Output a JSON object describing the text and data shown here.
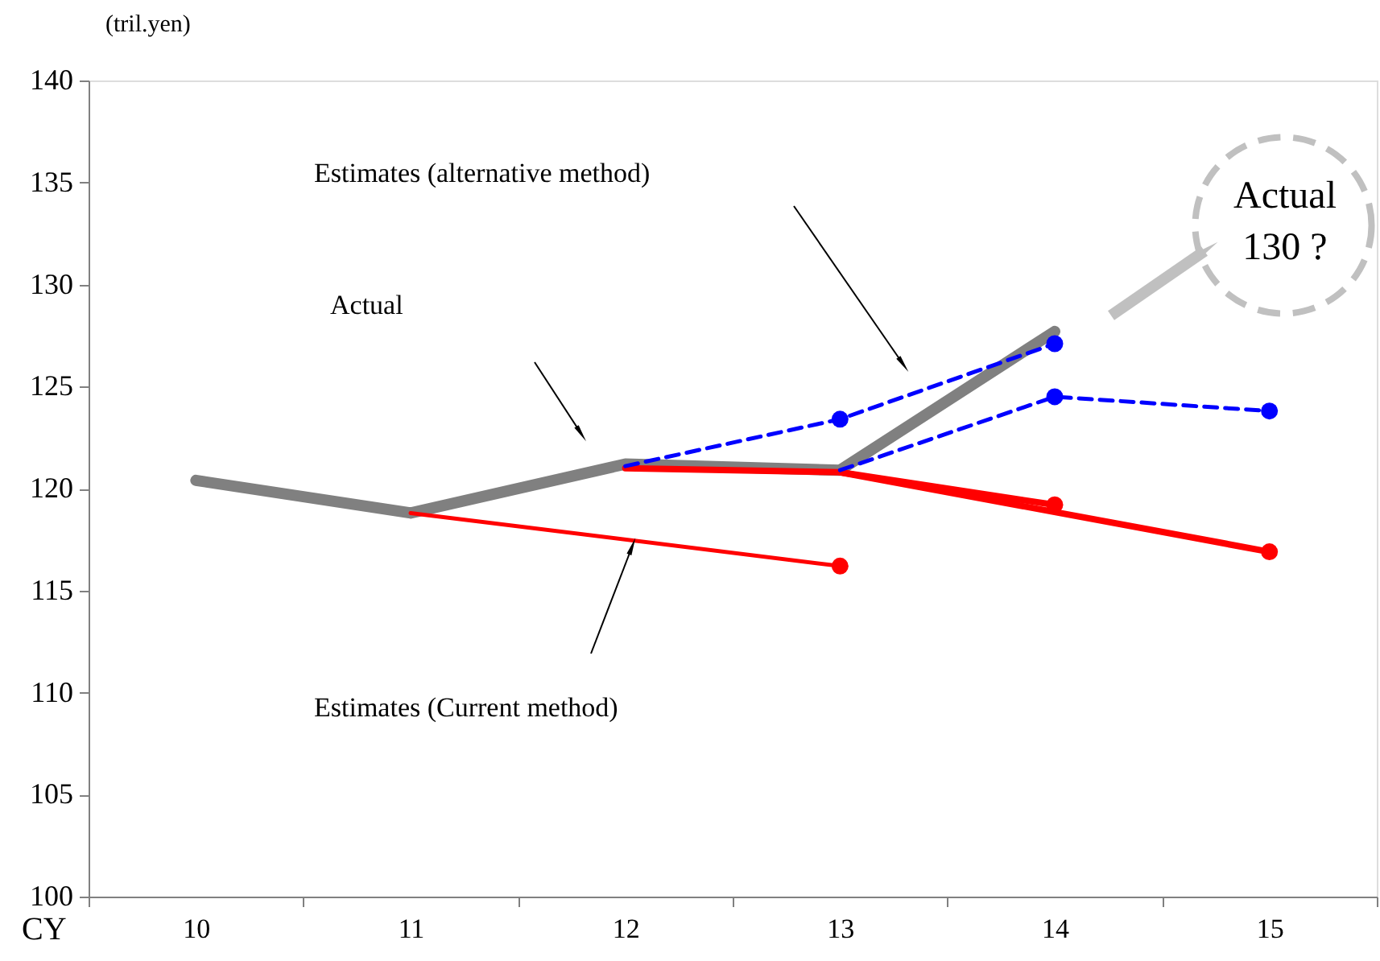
{
  "chart_data": {
    "type": "line",
    "ylabel": "(tril.yen)",
    "xlabel": "CY",
    "categories": [
      "10",
      "11",
      "12",
      "13",
      "14",
      "15"
    ],
    "ylim": [
      100,
      140
    ],
    "yticks": [
      100,
      105,
      110,
      115,
      120,
      125,
      130,
      135,
      140
    ],
    "grid": false,
    "marker": "none",
    "series": [
      {
        "color": "#808080",
        "line_style": "solid",
        "x": [
          "10",
          "11",
          "12",
          "13",
          "14"
        ],
        "values": [
          120.4,
          118.8,
          121.2,
          120.9,
          127.7
        ]
      },
      {
        "color": "#ff0000",
        "line_style": "solid",
        "x": [
          "11",
          "13"
        ],
        "values": [
          118.8,
          116.2
        ]
      },
      {
        "color": "#ff0000",
        "line_style": "solid",
        "x": [
          "12",
          "13",
          "14"
        ],
        "values": [
          121.0,
          120.8,
          119.2
        ]
      },
      {
        "color": "#ff0000",
        "line_style": "solid",
        "x": [
          "13",
          "15"
        ],
        "values": [
          120.8,
          116.9
        ]
      },
      {
        "color": "#0000ff",
        "line_style": "dashed",
        "x": [
          "12",
          "13",
          "14"
        ],
        "values": [
          121.1,
          123.4,
          127.1
        ]
      },
      {
        "color": "#0000ff",
        "line_style": "dashed",
        "x": [
          "13",
          "14",
          "15"
        ],
        "values": [
          120.9,
          124.5,
          123.8
        ]
      },
      {
        "type": "scatter",
        "color": "#ff0000",
        "marker": "circle",
        "x": [
          "13",
          "14",
          "15"
        ],
        "values": [
          116.2,
          119.2,
          116.9
        ]
      },
      {
        "type": "scatter",
        "color": "#0000ff",
        "marker": "circle",
        "x": [
          "13",
          "14",
          "14",
          "15"
        ],
        "values": [
          123.4,
          127.1,
          124.5,
          123.8
        ]
      }
    ],
    "annotations": [
      "Estimates (alternative method)",
      "Actual",
      "Estimates (Current method)",
      "Actual\n130 ?"
    ]
  }
}
